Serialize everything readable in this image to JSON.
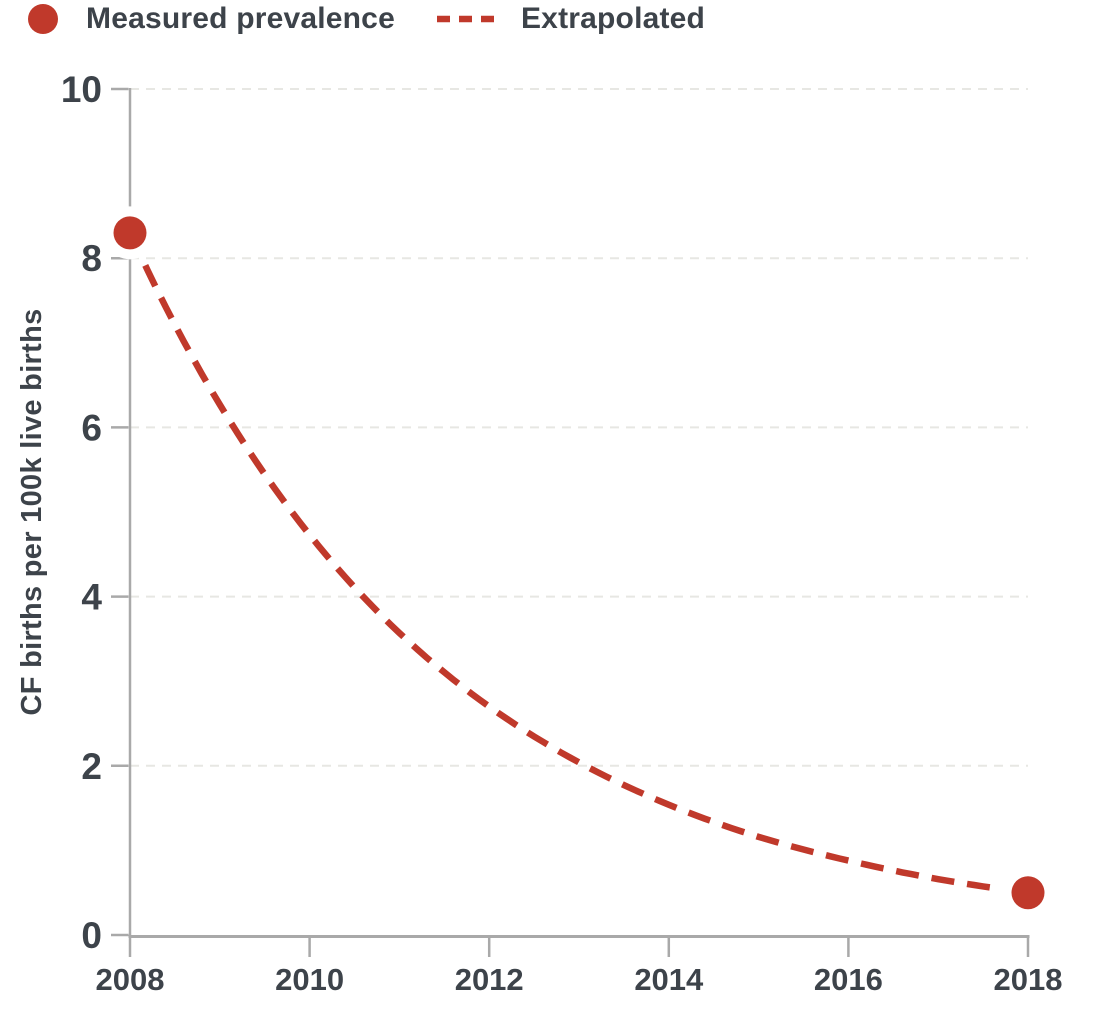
{
  "legend": {
    "measured_label": "Measured prevalence",
    "extrapolated_label": "Extrapolated"
  },
  "colors": {
    "accent_red": "#c0392b",
    "text_dark": "#3d434a",
    "axis_gray": "#a9a9a9",
    "grid_gray": "#e7e7e3",
    "background": "#ffffff"
  },
  "chart_data": {
    "type": "line",
    "title": "",
    "xlabel": "",
    "ylabel": "CF births per 100k live births",
    "xlim": [
      2008,
      2018
    ],
    "ylim": [
      0,
      10
    ],
    "x_ticks": [
      2008,
      2010,
      2012,
      2014,
      2016,
      2018
    ],
    "y_ticks": [
      0,
      2,
      4,
      6,
      8,
      10
    ],
    "grid": "horizontal-dashed",
    "legend_position": "top-left",
    "series": [
      {
        "name": "Measured prevalence",
        "style": "points",
        "x": [
          2008,
          2018
        ],
        "values": [
          8.3,
          0.5
        ]
      },
      {
        "name": "Extrapolated",
        "style": "dashed-line",
        "x": [
          2008,
          2009,
          2010,
          2011,
          2012,
          2013,
          2014,
          2015,
          2016,
          2017,
          2018
        ],
        "values": [
          8.3,
          6.27,
          4.73,
          3.57,
          2.7,
          2.04,
          1.54,
          1.16,
          0.88,
          0.66,
          0.5
        ]
      }
    ]
  }
}
